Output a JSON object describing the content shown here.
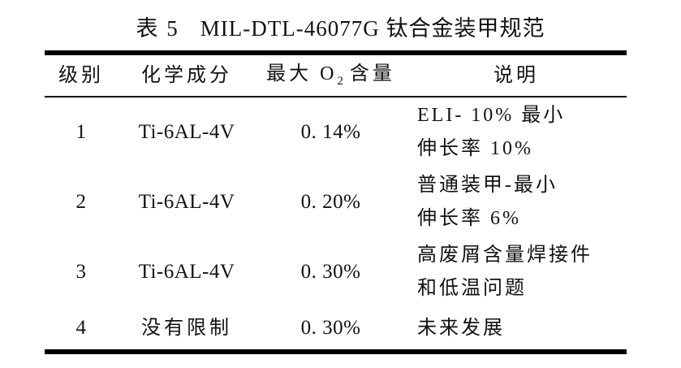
{
  "title": {
    "label": "表 5",
    "text": "MIL-DTL-46077G 钛合金装甲规范"
  },
  "table": {
    "headers": {
      "grade": "级别",
      "composition": "化学成分",
      "max_o2_prefix": "最大 O",
      "max_o2_sub": "2",
      "max_o2_suffix": "含量",
      "description": "说明"
    },
    "rows": [
      {
        "grade": "1",
        "composition": "Ti-6AL-4V",
        "max_o2": "0. 14%",
        "desc1": "ELI- 10% 最小",
        "desc2": "伸长率 10%"
      },
      {
        "grade": "2",
        "composition": "Ti-6AL-4V",
        "max_o2": "0. 20%",
        "desc1": "普通装甲-最小",
        "desc2": "伸长率 6%"
      },
      {
        "grade": "3",
        "composition": "Ti-6AL-4V",
        "max_o2": "0. 30%",
        "desc1": "高废屑含量焊接件",
        "desc2": "和低温问题"
      },
      {
        "grade": "4",
        "composition": "没有限制",
        "max_o2": "0. 30%",
        "desc1": "未来发展",
        "desc2": ""
      }
    ]
  },
  "colors": {
    "background": "#ffffff",
    "text": "#121212",
    "rule": "#000000"
  }
}
